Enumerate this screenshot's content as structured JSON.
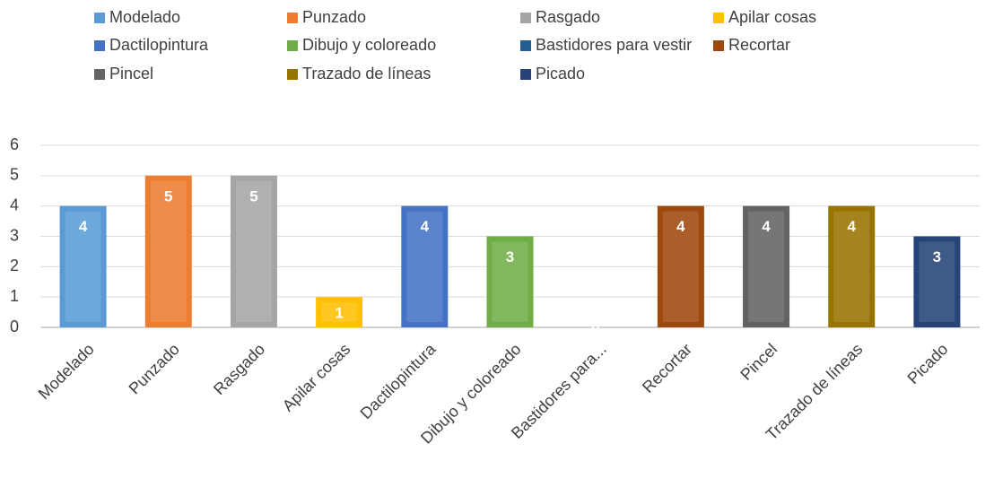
{
  "chart_data": {
    "type": "bar",
    "categories": [
      "Modelado",
      "Punzado",
      "Rasgado",
      "Apilar cosas",
      "Dactilopintura",
      "Dibujo y coloreado",
      "Bastidores para...",
      "Recortar",
      "Pincel",
      "Trazado de líneas",
      "Picado"
    ],
    "values": [
      4,
      5,
      5,
      1,
      4,
      3,
      0,
      4,
      4,
      4,
      3
    ],
    "colors": [
      "#5b9bd5",
      "#ed7d31",
      "#a5a5a5",
      "#ffc000",
      "#4472c4",
      "#70ad47",
      "#255e91",
      "#9e480e",
      "#636363",
      "#997300",
      "#264478"
    ],
    "legend": [
      "Modelado",
      "Punzado",
      "Rasgado",
      "Apilar cosas",
      "Dactilopintura",
      "Dibujo y coloreado",
      "Bastidores para vestir",
      "Recortar",
      "Pincel",
      "Trazado de líneas",
      "Picado"
    ],
    "ylim": [
      0,
      6
    ],
    "yticks": [
      0,
      1,
      2,
      3,
      4,
      5,
      6
    ],
    "grid": true,
    "legend_position": "top"
  }
}
